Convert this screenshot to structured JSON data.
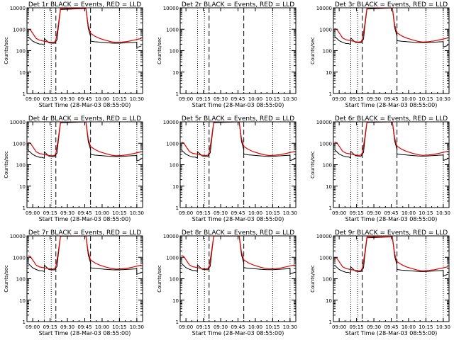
{
  "colors": {
    "events": "#000000",
    "lld": "#e00000",
    "background": "#ffffff",
    "axes": "#000000"
  },
  "chart_data": [
    {
      "type": "line",
      "title": "Det 1r  BLACK = Events, RED = LLD",
      "show_ylabel": true,
      "show_xlabel": true,
      "has_data": true,
      "variant": 1
    },
    {
      "type": "line",
      "title": "Det 2r  BLACK = Events, RED = LLD",
      "show_ylabel": true,
      "show_xlabel": true,
      "has_data": false,
      "variant": 2
    },
    {
      "type": "line",
      "title": "Det 3r  BLACK = Events, RED = LLD",
      "show_ylabel": true,
      "show_xlabel": true,
      "has_data": true,
      "variant": 3
    },
    {
      "type": "line",
      "title": "Det 4r  BLACK = Events, RED = LLD",
      "show_ylabel": true,
      "show_xlabel": true,
      "has_data": true,
      "variant": 4
    },
    {
      "type": "line",
      "title": "Det 5r  BLACK = Events, RED = LLD",
      "show_ylabel": false,
      "show_xlabel": true,
      "has_data": true,
      "variant": 5
    },
    {
      "type": "line",
      "title": "Det 6r  BLACK = Events, RED = LLD",
      "show_ylabel": true,
      "show_xlabel": true,
      "has_data": true,
      "variant": 6
    },
    {
      "type": "line",
      "title": "Det 7r  BLACK = Events, RED = LLD",
      "show_ylabel": true,
      "show_xlabel": true,
      "has_data": true,
      "variant": 7
    },
    {
      "type": "line",
      "title": "Det 8r  BLACK = Events, RED = LLD",
      "show_ylabel": true,
      "show_xlabel": true,
      "has_data": true,
      "variant": 8
    },
    {
      "type": "line",
      "title": "Det 9r  BLACK = Events, RED = LLD",
      "show_ylabel": true,
      "show_xlabel": true,
      "has_data": true,
      "variant": 9
    }
  ],
  "shared": {
    "xlabel": "Start Time (28-Mar-03 08:55:00)",
    "ylabel": "Counts/sec",
    "y_scale": "log",
    "ylim": [
      1,
      10000
    ],
    "y_ticks": [
      1,
      10,
      100,
      1000,
      10000
    ],
    "y_tick_labels": [
      "1",
      "10",
      "100",
      "1000",
      "10000"
    ],
    "x_range": [
      "08:55",
      "10:35"
    ],
    "x_ticks": [
      "09:00",
      "09:15",
      "09:30",
      "09:45",
      "10:00",
      "10:15",
      "10:30"
    ],
    "dotted_markers": [
      "09:10",
      "09:16",
      "10:15",
      "10:30"
    ],
    "dashed_markers": [
      "09:20",
      "09:50"
    ],
    "events": [
      [
        "08:56",
        480
      ],
      [
        "09:00",
        300
      ],
      [
        "09:03",
        250
      ],
      [
        "09:06",
        220
      ],
      [
        "09:08",
        220
      ],
      [
        "09:10",
        200
      ],
      [
        "09:10",
        400
      ],
      [
        "09:14",
        250
      ],
      [
        "09:17",
        240
      ],
      [
        "09:19",
        240
      ],
      [
        "09:20",
        300
      ],
      [
        "09:21",
        350
      ],
      [
        "09:22",
        1100
      ],
      [
        "09:24",
        9000
      ],
      [
        "09:46",
        10000
      ],
      [
        "09:48",
        1200
      ],
      [
        "09:50",
        500
      ],
      [
        "09:50",
        300
      ],
      [
        "09:54",
        280
      ],
      [
        "09:58",
        270
      ],
      [
        "10:05",
        250
      ],
      [
        "10:10",
        240
      ],
      [
        "10:15",
        240
      ],
      [
        "10:20",
        250
      ],
      [
        "10:25",
        260
      ],
      [
        "10:30",
        270
      ],
      [
        "10:30",
        150
      ],
      [
        "10:34",
        180
      ]
    ],
    "lld": [
      [
        "08:56",
        1100
      ],
      [
        "08:58",
        1000
      ],
      [
        "09:00",
        700
      ],
      [
        "09:03",
        400
      ],
      [
        "09:06",
        330
      ],
      [
        "09:10",
        300
      ],
      [
        "09:14",
        270
      ],
      [
        "09:17",
        260
      ],
      [
        "09:19",
        270
      ],
      [
        "09:20",
        350
      ],
      [
        "09:22",
        1500
      ],
      [
        "09:24",
        10000
      ],
      [
        "09:46",
        10000
      ],
      [
        "09:48",
        1600
      ],
      [
        "09:50",
        700
      ],
      [
        "09:54",
        500
      ],
      [
        "09:58",
        400
      ],
      [
        "10:03",
        330
      ],
      [
        "10:08",
        280
      ],
      [
        "10:12",
        260
      ],
      [
        "10:17",
        270
      ],
      [
        "10:22",
        290
      ],
      [
        "10:27",
        330
      ],
      [
        "10:32",
        380
      ],
      [
        "10:34",
        400
      ]
    ]
  }
}
